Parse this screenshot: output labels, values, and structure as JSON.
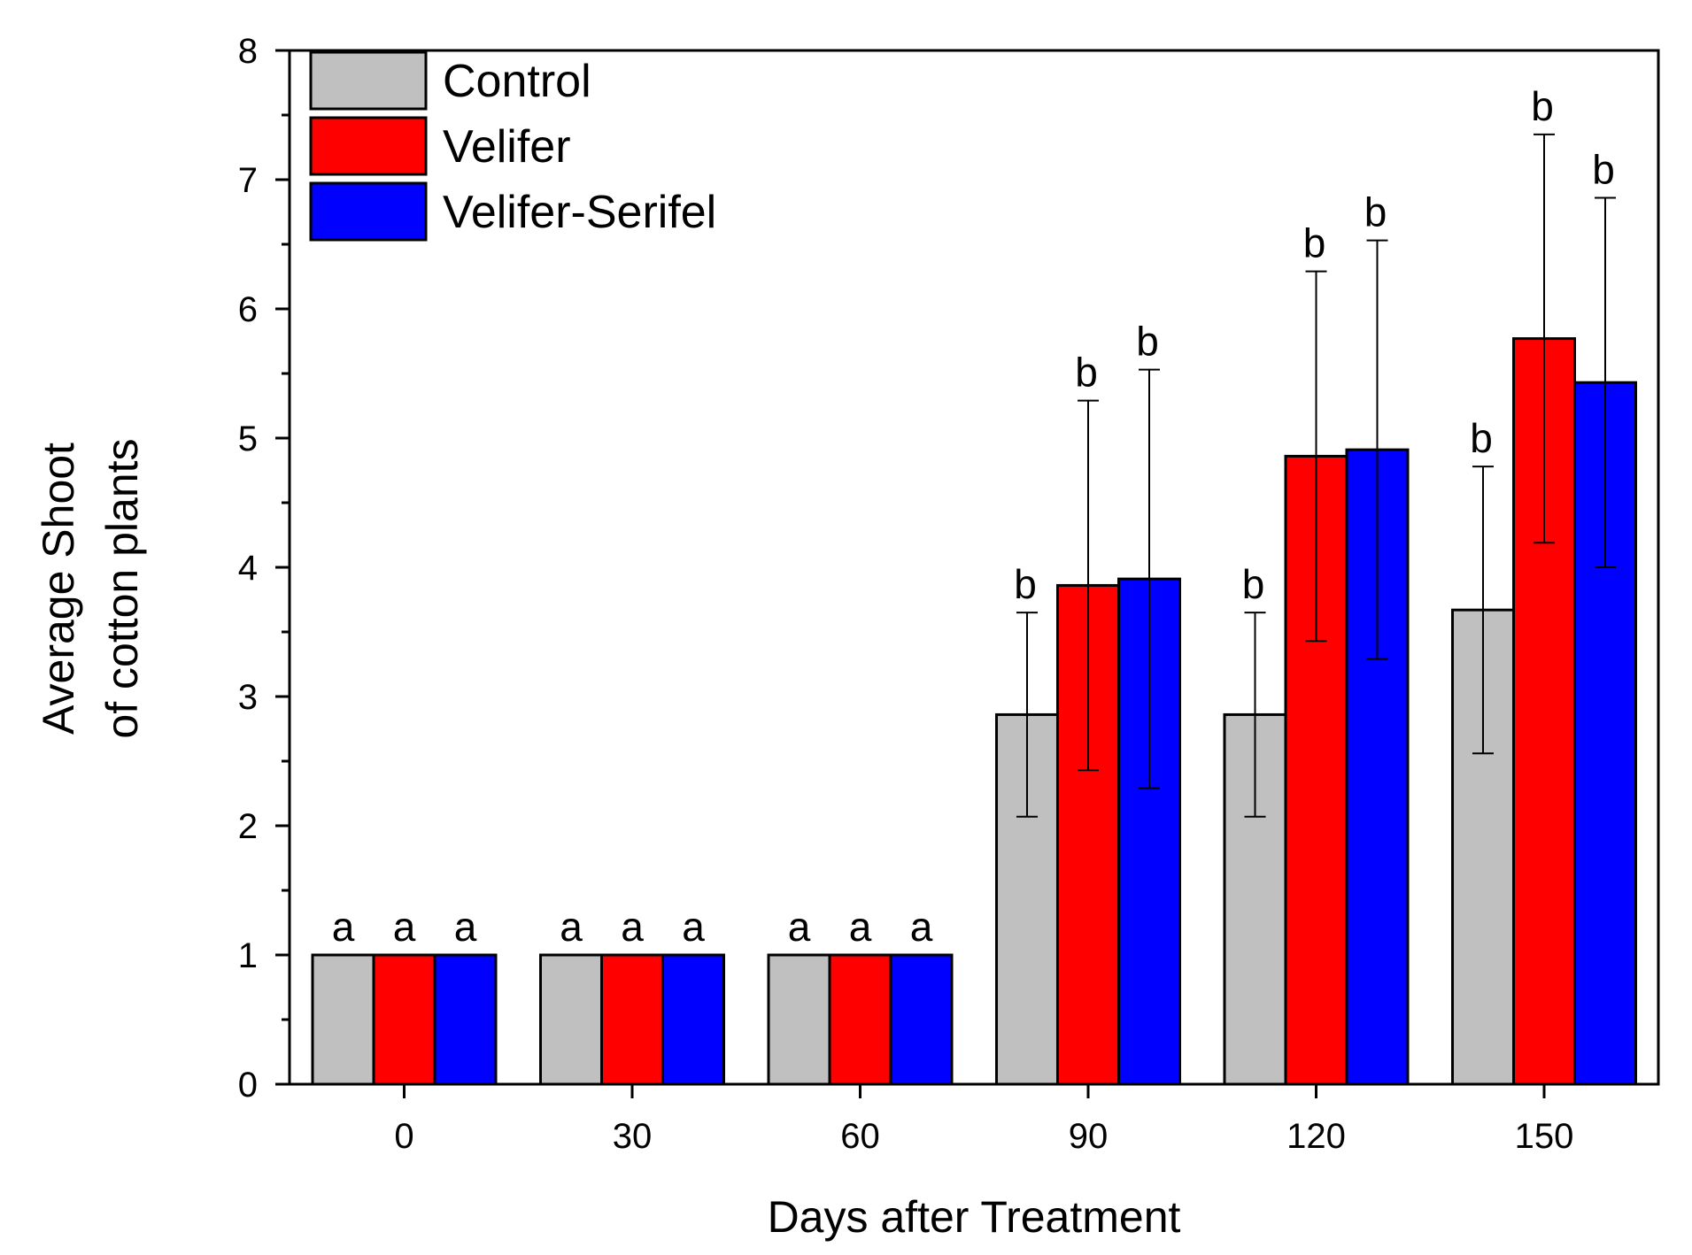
{
  "chart_data": {
    "type": "bar",
    "title": "",
    "xlabel": "Days after Treatment",
    "ylabel_lines": [
      "Average Shoot",
      "of cotton plants"
    ],
    "categories": [
      "0",
      "30",
      "60",
      "90",
      "120",
      "150"
    ],
    "ylim": [
      0,
      8
    ],
    "yticks": [
      "0",
      "1",
      "2",
      "3",
      "4",
      "5",
      "6",
      "7",
      "8"
    ],
    "legend_position": "top-left",
    "series": [
      {
        "name": "Control",
        "color": "#c0c0c0",
        "values": [
          1,
          1,
          1,
          2.86,
          2.86,
          3.67
        ],
        "err_low": [
          null,
          null,
          null,
          2.07,
          2.07,
          2.56
        ],
        "err_high": [
          null,
          null,
          null,
          3.65,
          3.65,
          4.78
        ],
        "labels": [
          "a",
          "a",
          "a",
          "b",
          "b",
          "b"
        ]
      },
      {
        "name": "Velifer",
        "color": "#ff0000",
        "values": [
          1,
          1,
          1,
          3.86,
          4.86,
          5.77
        ],
        "err_low": [
          null,
          null,
          null,
          2.43,
          3.43,
          4.19
        ],
        "err_high": [
          null,
          null,
          null,
          5.29,
          6.29,
          7.35
        ],
        "labels": [
          "a",
          "a",
          "a",
          "b",
          "b",
          "b"
        ]
      },
      {
        "name": "Velifer-Serifel",
        "color": "#0000ff",
        "values": [
          1,
          1,
          1,
          3.91,
          4.91,
          5.43
        ],
        "err_low": [
          null,
          null,
          null,
          2.29,
          3.29,
          4.0
        ],
        "err_high": [
          null,
          null,
          null,
          5.53,
          6.53,
          6.86
        ],
        "labels": [
          "a",
          "a",
          "a",
          "b",
          "b",
          "b"
        ]
      }
    ]
  }
}
